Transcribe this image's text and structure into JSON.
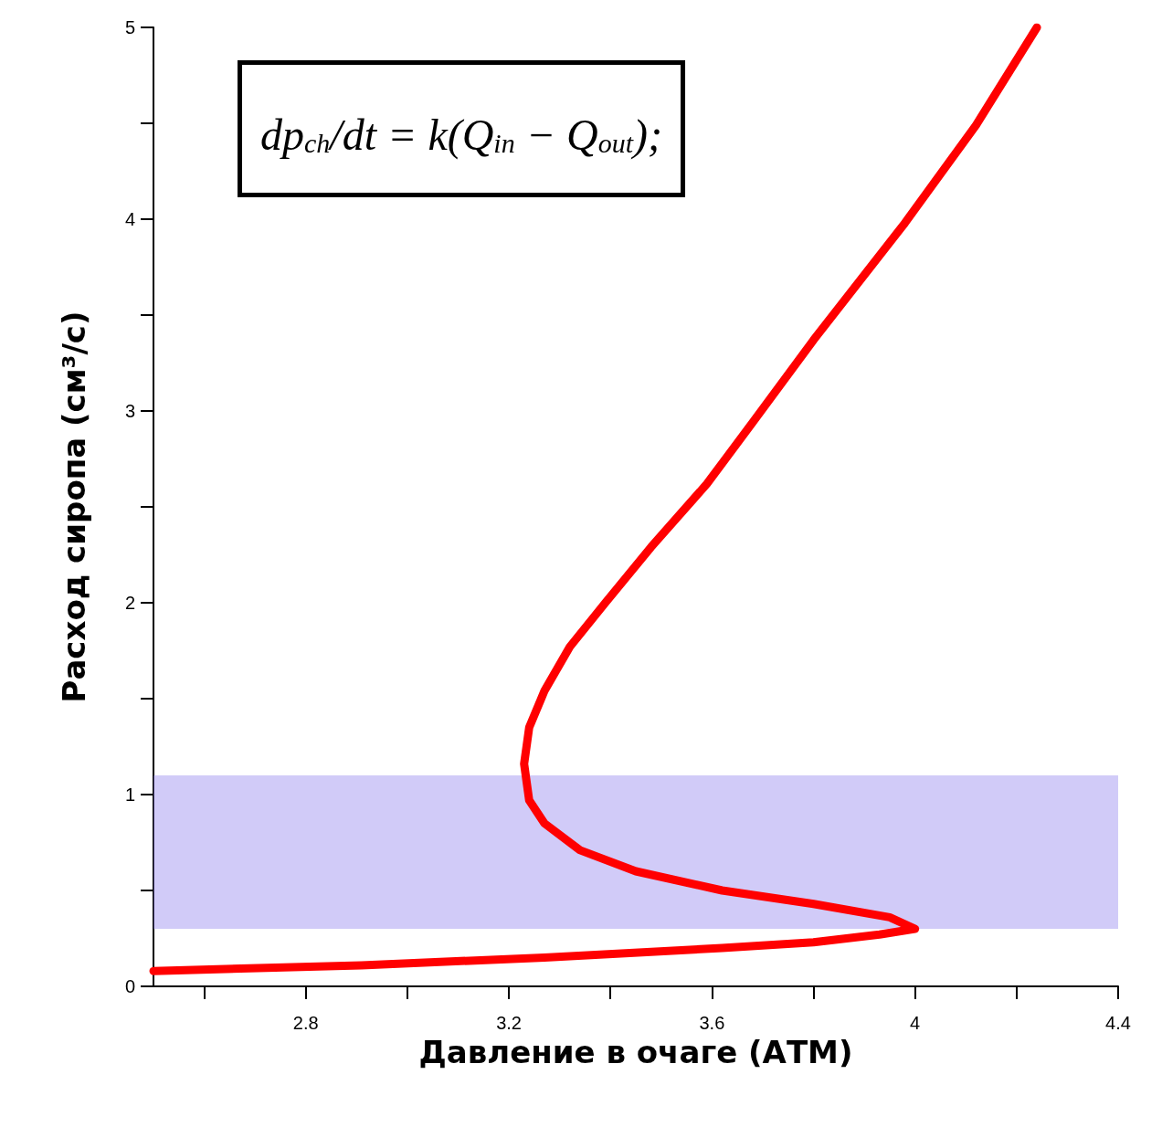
{
  "chart_data": {
    "type": "line",
    "xlabel": "Давление в очаге (АТМ)",
    "ylabel": "Расход сиропа (см³/с)",
    "annotations": [
      "dp$_{ch}$/dt = k(Q$_{in}$ − Q$_{out}$);"
    ],
    "series": [
      {
        "color": "#ff0000",
        "x": [
          2.5,
          2.91,
          3.27,
          3.62,
          3.8,
          3.93,
          4.0,
          3.95,
          3.8,
          3.62,
          3.45,
          3.34,
          3.27,
          3.24,
          3.23,
          3.24,
          3.27,
          3.32,
          3.39,
          3.48,
          3.59,
          3.68,
          3.8,
          3.98,
          4.12,
          4.24
        ],
        "values": [
          0.08,
          0.11,
          0.15,
          0.2,
          0.23,
          0.27,
          0.3,
          0.36,
          0.43,
          0.5,
          0.6,
          0.71,
          0.85,
          0.97,
          1.16,
          1.35,
          1.54,
          1.77,
          2.0,
          2.29,
          2.62,
          2.94,
          3.37,
          3.98,
          4.49,
          5.0
        ]
      }
    ],
    "bands": [
      {
        "axis": "y",
        "from": 0.3,
        "to": 1.1,
        "color": "#9a8cf0"
      }
    ],
    "xlim": [
      2.5,
      4.4
    ],
    "ylim": [
      0,
      5
    ],
    "xticks": [
      {
        "value": 2.6,
        "label": null
      },
      2.8,
      {
        "value": 3.0,
        "label": null
      },
      3.2,
      {
        "value": 3.4,
        "label": null
      },
      3.6,
      {
        "value": 3.8,
        "label": null
      },
      4,
      {
        "value": 4.2,
        "label": null
      },
      4.4
    ],
    "yticks": [
      0,
      {
        "value": 0.5,
        "label": null
      },
      1,
      {
        "value": 1.5,
        "label": null
      },
      2,
      {
        "value": 2.5,
        "label": null
      },
      3,
      {
        "value": 3.5,
        "label": null
      },
      4,
      {
        "value": 4.5,
        "label": null
      },
      5
    ],
    "grid": false,
    "line_style": "solid"
  }
}
